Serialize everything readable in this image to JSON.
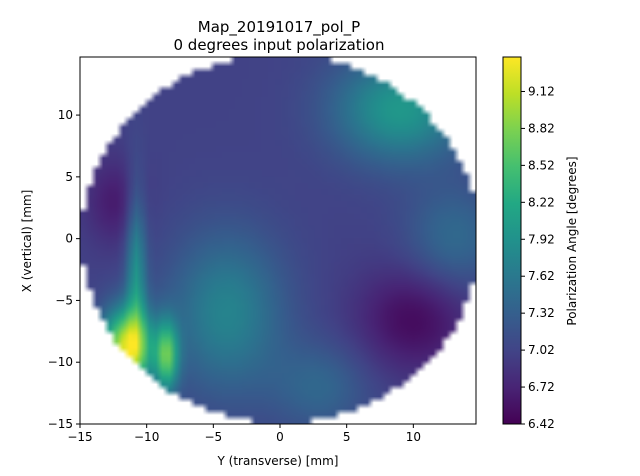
{
  "chart_data": {
    "type": "heatmap",
    "title": "Map_20191017_pol_P",
    "subtitle": "0 degrees input polarization",
    "xlabel": "Y (transverse) [mm]",
    "ylabel": "X (vertical) [mm]",
    "xlim": [
      -15,
      14.7
    ],
    "ylim": [
      -15,
      14.7
    ],
    "x_ticks": [
      -15,
      -10,
      -5,
      0,
      5,
      10
    ],
    "y_ticks": [
      -15,
      -10,
      -5,
      0,
      5,
      10
    ],
    "colormap": "viridis",
    "grid": false,
    "colorbar": {
      "label": "Polarization Angle [degrees]",
      "min": 6.42,
      "max": 9.4,
      "ticks": [
        "6.42",
        "6.72",
        "7.02",
        "7.32",
        "7.62",
        "7.92",
        "8.22",
        "8.52",
        "8.82",
        "9.12"
      ]
    },
    "region": {
      "shape": "circle",
      "center": [
        0,
        0
      ],
      "radius": 14.9
    },
    "features": {
      "base_value": 7.0,
      "lobes": [
        {
          "x": -11.5,
          "y": -8.8,
          "sx": 1.3,
          "sy": 2.2,
          "value": 2.2
        },
        {
          "x": -8.5,
          "y": -9.5,
          "sx": 0.6,
          "sy": 2.0,
          "value": 1.5
        },
        {
          "x": -10.8,
          "y": -3.0,
          "sx": 0.5,
          "sy": 5.0,
          "value": 0.9
        },
        {
          "x": -4.0,
          "y": -6.0,
          "sx": 3.0,
          "sy": 4.5,
          "value": 0.75
        },
        {
          "x": 9.0,
          "y": 10.5,
          "sx": 3.5,
          "sy": 3.0,
          "value": 1.0
        },
        {
          "x": 13.0,
          "y": 0.0,
          "sx": 2.5,
          "sy": 3.0,
          "value": 0.45
        },
        {
          "x": 3.0,
          "y": -12.0,
          "sx": 2.5,
          "sy": 2.5,
          "value": 0.4
        },
        {
          "x": -12.5,
          "y": 3.0,
          "sx": 1.5,
          "sy": 2.5,
          "value": -0.35
        },
        {
          "x": 10.0,
          "y": -6.5,
          "sx": 3.0,
          "sy": 3.0,
          "value": -0.5
        }
      ]
    }
  }
}
